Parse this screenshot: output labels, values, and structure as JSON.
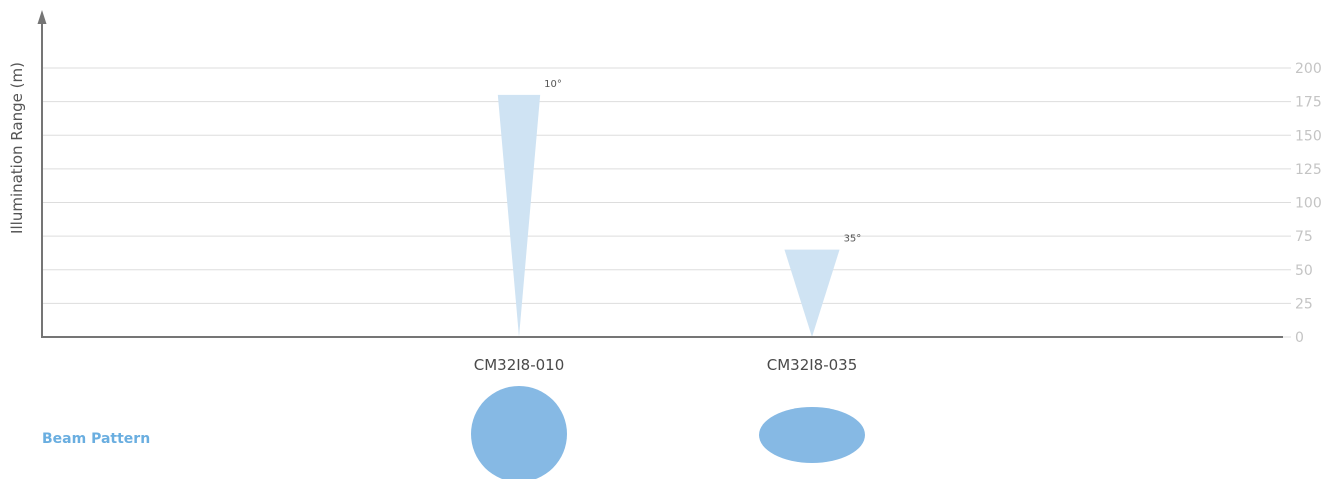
{
  "colors": {
    "beam_fill": "#cfe3f3",
    "pattern_fill": "#86b9e4",
    "axis": "#757575",
    "grid": "#dddddd",
    "tick_text": "#c4c4c4",
    "title_accent": "#6aaee0"
  },
  "chart_data": {
    "type": "bar",
    "ylabel": "Illumination Range (m)",
    "ylim": [
      0,
      200
    ],
    "y_ticks": [
      "0",
      "25",
      "50",
      "75",
      "100",
      "125",
      "150",
      "175",
      "200"
    ],
    "y_axis_side": "right",
    "grid": true,
    "categories": [
      "CM32I8-010",
      "CM32I8-035"
    ],
    "values": [
      180,
      65
    ],
    "beam_angles": [
      10,
      35
    ],
    "beam_labels": [
      "10°",
      "35°"
    ]
  },
  "beam_pattern": {
    "title": "Beam Pattern",
    "shapes": [
      "circle",
      "ellipse"
    ]
  }
}
